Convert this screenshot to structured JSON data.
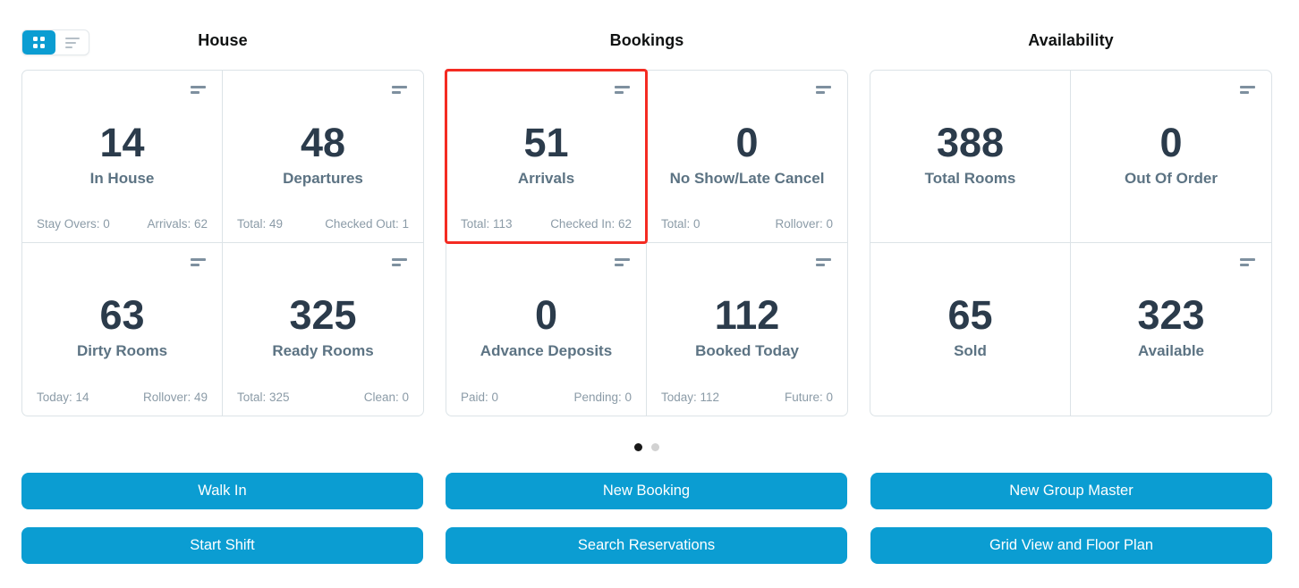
{
  "view_toggle": {
    "buttons": [
      {
        "name": "grid-view",
        "icon": "grid-icon",
        "active": true
      },
      {
        "name": "list-view",
        "icon": "list-lines-icon",
        "active": false
      }
    ]
  },
  "colors": {
    "accent_blue": "#0b9dd2",
    "highlight_red": "#f42b22",
    "number_dark": "#2b3b4b",
    "label_slate": "#5c7383",
    "footnote_gray": "#8b9ba7",
    "border_gray": "#dce3e7",
    "dot_active": "#191919",
    "dot_inactive": "#d2d2d2"
  },
  "sections": [
    {
      "title": "House",
      "cards": [
        {
          "value": "14",
          "label": "In House",
          "foot_left": "Stay Overs: 0",
          "foot_right": "Arrivals: 62"
        },
        {
          "value": "48",
          "label": "Departures",
          "foot_left": "Total: 49",
          "foot_right": "Checked Out: 1"
        },
        {
          "value": "63",
          "label": "Dirty Rooms",
          "foot_left": "Today: 14",
          "foot_right": "Rollover: 49"
        },
        {
          "value": "325",
          "label": "Ready Rooms",
          "foot_left": "Total: 325",
          "foot_right": "Clean: 0"
        }
      ],
      "buttons": [
        "Walk In",
        "Start Shift"
      ]
    },
    {
      "title": "Bookings",
      "cards": [
        {
          "value": "51",
          "label": "Arrivals",
          "foot_left": "Total: 113",
          "foot_right": "Checked In: 62",
          "highlighted": true
        },
        {
          "value": "0",
          "label": "No Show/Late Cancel",
          "foot_left": "Total: 0",
          "foot_right": "Rollover: 0"
        },
        {
          "value": "0",
          "label": "Advance Deposits",
          "foot_left": "Paid: 0",
          "foot_right": "Pending: 0"
        },
        {
          "value": "112",
          "label": "Booked Today",
          "foot_left": "Today: 112",
          "foot_right": "Future: 0"
        }
      ],
      "buttons": [
        "New Booking",
        "Search Reservations"
      ]
    },
    {
      "title": "Availability",
      "cards": [
        {
          "value": "388",
          "label": "Total Rooms"
        },
        {
          "value": "0",
          "label": "Out Of Order"
        },
        {
          "value": "65",
          "label": "Sold"
        },
        {
          "value": "323",
          "label": "Available"
        }
      ],
      "buttons": [
        "New Group Master",
        "Grid View and Floor Plan"
      ]
    }
  ],
  "pagination": {
    "total_dots": 2,
    "active_index": 0
  }
}
